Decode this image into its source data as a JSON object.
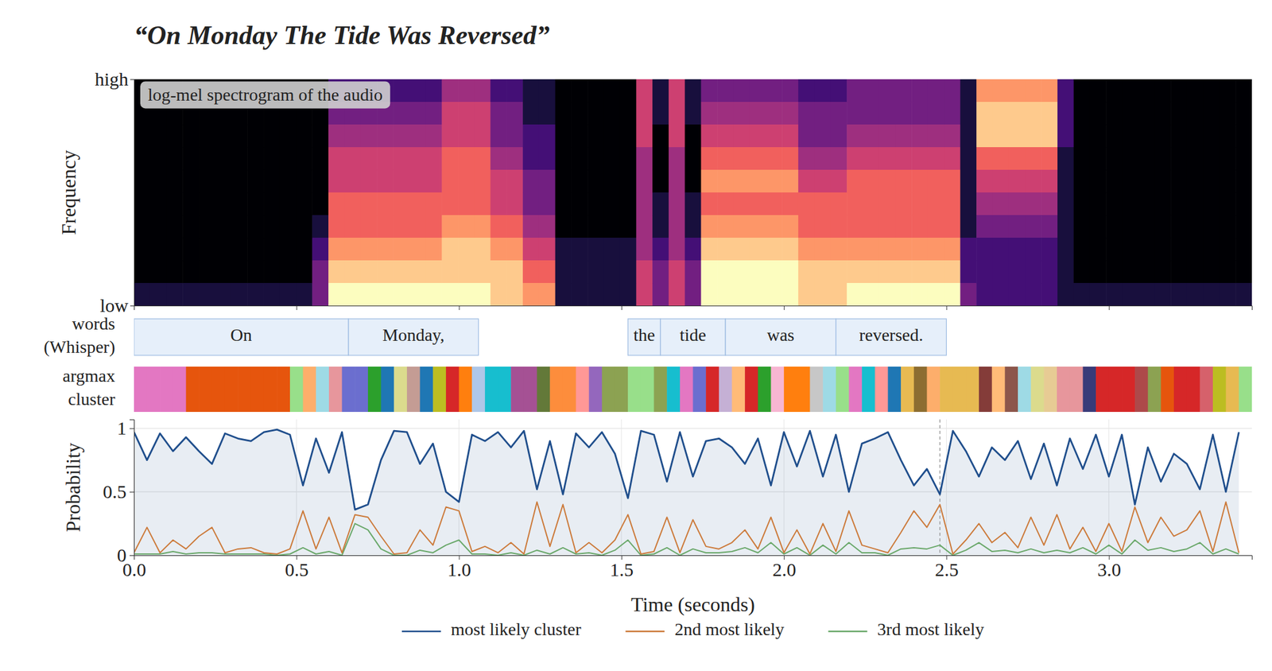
{
  "chart_data": [
    {
      "type": "heatmap",
      "title": "“On Monday The Tide Was Reversed”",
      "annotation": "log-mel spectrogram of the audio",
      "ylabel": "Frequency",
      "xlim": [
        0,
        3.44
      ],
      "xticks": [
        0,
        0.5,
        1,
        1.5,
        2,
        2.5,
        3
      ],
      "ylim": [
        0,
        1
      ],
      "yticks": [
        {
          "value": 0,
          "label": "low"
        },
        {
          "value": 1,
          "label": "high"
        }
      ],
      "tick_labels": "y",
      "cells": [
        [
          0,
          0,
          0,
          0,
          0,
          0,
          0,
          0,
          0,
          0,
          0,
          0,
          2,
          2,
          2,
          2,
          2,
          2,
          2,
          4,
          4,
          4,
          2,
          2,
          1,
          1,
          0,
          0,
          0,
          0,
          0,
          5,
          1,
          5,
          1,
          3,
          3,
          3,
          3,
          3,
          3,
          2,
          2,
          2,
          3,
          3,
          3,
          3,
          3,
          3,
          3,
          1,
          7,
          7,
          7,
          7,
          7,
          2,
          0,
          0,
          0,
          0,
          0,
          0,
          0,
          0,
          0,
          0,
          0
        ],
        [
          0,
          0,
          0,
          0,
          0,
          0,
          0,
          0,
          0,
          0,
          0,
          0,
          3,
          3,
          3,
          3,
          3,
          3,
          3,
          5,
          5,
          5,
          3,
          3,
          1,
          1,
          0,
          0,
          0,
          0,
          0,
          5,
          1,
          5,
          1,
          4,
          4,
          4,
          4,
          4,
          4,
          3,
          3,
          3,
          3,
          3,
          3,
          3,
          3,
          3,
          3,
          1,
          8,
          8,
          8,
          8,
          8,
          2,
          0,
          0,
          0,
          0,
          0,
          0,
          0,
          0,
          0,
          0,
          0
        ],
        [
          0,
          0,
          0,
          0,
          0,
          0,
          0,
          0,
          0,
          0,
          0,
          0,
          4,
          4,
          4,
          4,
          4,
          4,
          4,
          5,
          5,
          5,
          3,
          3,
          2,
          2,
          0,
          0,
          0,
          0,
          0,
          5,
          0,
          5,
          0,
          5,
          5,
          5,
          5,
          5,
          5,
          3,
          3,
          3,
          4,
          4,
          4,
          4,
          4,
          4,
          4,
          1,
          8,
          8,
          8,
          8,
          8,
          2,
          0,
          0,
          0,
          0,
          0,
          0,
          0,
          0,
          0,
          0,
          0
        ],
        [
          0,
          0,
          0,
          0,
          0,
          0,
          0,
          0,
          0,
          0,
          0,
          0,
          5,
          5,
          5,
          5,
          5,
          5,
          5,
          6,
          6,
          6,
          4,
          4,
          2,
          2,
          0,
          0,
          0,
          0,
          0,
          4,
          0,
          4,
          0,
          6,
          6,
          6,
          6,
          6,
          6,
          4,
          4,
          4,
          5,
          5,
          5,
          5,
          5,
          5,
          5,
          1,
          6,
          6,
          6,
          6,
          6,
          1,
          0,
          0,
          0,
          0,
          0,
          0,
          0,
          0,
          0,
          0,
          0
        ],
        [
          0,
          0,
          0,
          0,
          0,
          0,
          0,
          0,
          0,
          0,
          0,
          0,
          5,
          5,
          5,
          5,
          5,
          5,
          5,
          6,
          6,
          6,
          5,
          5,
          3,
          3,
          0,
          0,
          0,
          0,
          0,
          4,
          0,
          4,
          0,
          7,
          7,
          7,
          7,
          7,
          7,
          5,
          5,
          5,
          6,
          6,
          6,
          6,
          6,
          6,
          6,
          1,
          5,
          5,
          5,
          5,
          5,
          1,
          0,
          0,
          0,
          0,
          0,
          0,
          0,
          0,
          0,
          0,
          0
        ],
        [
          0,
          0,
          0,
          0,
          0,
          0,
          0,
          0,
          0,
          0,
          0,
          0,
          6,
          6,
          6,
          6,
          6,
          6,
          6,
          6,
          6,
          6,
          5,
          5,
          3,
          3,
          0,
          0,
          0,
          0,
          0,
          4,
          1,
          4,
          1,
          6,
          6,
          6,
          6,
          6,
          6,
          6,
          6,
          6,
          6,
          6,
          6,
          6,
          6,
          6,
          6,
          1,
          4,
          4,
          4,
          4,
          4,
          1,
          0,
          0,
          0,
          0,
          0,
          0,
          0,
          0,
          0,
          0,
          0
        ],
        [
          0,
          0,
          0,
          0,
          0,
          0,
          0,
          0,
          0,
          0,
          0,
          1,
          6,
          6,
          6,
          6,
          6,
          6,
          6,
          7,
          7,
          7,
          6,
          6,
          4,
          4,
          0,
          0,
          0,
          0,
          0,
          4,
          1,
          4,
          1,
          7,
          7,
          7,
          7,
          7,
          7,
          6,
          6,
          6,
          6,
          6,
          6,
          6,
          6,
          6,
          6,
          1,
          3,
          3,
          3,
          3,
          3,
          1,
          0,
          0,
          0,
          0,
          0,
          0,
          0,
          0,
          0,
          0,
          0
        ],
        [
          0,
          0,
          0,
          0,
          0,
          0,
          0,
          0,
          0,
          0,
          0,
          2,
          7,
          7,
          7,
          7,
          7,
          7,
          7,
          8,
          8,
          8,
          7,
          7,
          5,
          5,
          1,
          1,
          1,
          1,
          1,
          4,
          2,
          4,
          2,
          8,
          8,
          8,
          8,
          8,
          8,
          7,
          7,
          7,
          7,
          7,
          7,
          7,
          7,
          7,
          7,
          2,
          2,
          2,
          2,
          2,
          2,
          1,
          0,
          0,
          0,
          0,
          0,
          0,
          0,
          0,
          0,
          0,
          0
        ],
        [
          0,
          0,
          0,
          0,
          0,
          0,
          0,
          0,
          0,
          0,
          0,
          3,
          8,
          8,
          8,
          8,
          8,
          8,
          8,
          8,
          8,
          8,
          8,
          8,
          6,
          6,
          1,
          1,
          1,
          1,
          1,
          5,
          3,
          5,
          3,
          9,
          9,
          9,
          9,
          9,
          9,
          8,
          8,
          8,
          8,
          8,
          8,
          8,
          8,
          8,
          8,
          2,
          2,
          2,
          2,
          2,
          2,
          1,
          0,
          0,
          0,
          0,
          0,
          0,
          0,
          0,
          0,
          0,
          0
        ],
        [
          1,
          1,
          1,
          1,
          1,
          1,
          1,
          1,
          1,
          1,
          1,
          3,
          9,
          9,
          9,
          9,
          9,
          9,
          9,
          9,
          9,
          9,
          8,
          8,
          7,
          7,
          1,
          1,
          1,
          1,
          1,
          5,
          3,
          5,
          3,
          9,
          9,
          9,
          9,
          9,
          9,
          8,
          8,
          8,
          9,
          9,
          9,
          9,
          9,
          9,
          9,
          3,
          2,
          2,
          2,
          2,
          2,
          1,
          1,
          1,
          1,
          1,
          1,
          1,
          1,
          1,
          1,
          1,
          1
        ]
      ]
    },
    {
      "type": "timeline",
      "ylabel": "words\n(Whisper)",
      "xlim": [
        0,
        3.44
      ],
      "words": [
        {
          "text": "On",
          "start": 0,
          "end": 0.66
        },
        {
          "text": "Monday,",
          "start": 0.66,
          "end": 1.06
        },
        {
          "text": "the",
          "start": 1.52,
          "end": 1.62
        },
        {
          "text": "tide",
          "start": 1.62,
          "end": 1.82
        },
        {
          "text": "was",
          "start": 1.82,
          "end": 2.16
        },
        {
          "text": "reversed.",
          "start": 2.16,
          "end": 2.5
        }
      ]
    },
    {
      "type": "strip",
      "ylabel": "argmax\ncluster",
      "xlim": [
        0,
        3.44
      ],
      "colors": [
        "#e377c2",
        "#e377c2",
        "#e377c2",
        "#e377c2",
        "#e6550d",
        "#e6550d",
        "#e6550d",
        "#e6550d",
        "#e6550d",
        "#e6550d",
        "#e6550d",
        "#e6550d",
        "#98df8a",
        "#fdae6b",
        "#9edae5",
        "#e7969c",
        "#6b6ecf",
        "#6b6ecf",
        "#2ca02c",
        "#1f77b4",
        "#dbdb8d",
        "#c49c94",
        "#1f77b4",
        "#bcbd22",
        "#d62728",
        "#ff7f0e",
        "#aec7e8",
        "#17becf",
        "#17becf",
        "#a55194",
        "#a55194",
        "#637939",
        "#fd8d3c",
        "#fd8d3c",
        "#ff9896",
        "#9467bd",
        "#8ca252",
        "#8ca252",
        "#98df8a",
        "#98df8a",
        "#8ca252",
        "#17becf",
        "#e377c2",
        "#6b6ecf",
        "#d62728",
        "#c5b0d5",
        "#ffbb78",
        "#d62728",
        "#2ca02c",
        "#f7b6d2",
        "#ff7f0e",
        "#ff7f0e",
        "#c7c7c7",
        "#9edae5",
        "#98df8a",
        "#e377c2",
        "#17becf",
        "#ff9896",
        "#1f77b4",
        "#e7ba52",
        "#8c6d31",
        "#fdae6b",
        "#e7ba52",
        "#e7ba52",
        "#e7ba52",
        "#843c39",
        "#ffbb78",
        "#8c564b",
        "#9edae5",
        "#dbdb8d",
        "#e7cb94",
        "#e7969c",
        "#e7969c",
        "#393b79",
        "#d62728",
        "#d62728",
        "#d62728",
        "#ad494a",
        "#8ca252",
        "#e6550d",
        "#d62728",
        "#d62728",
        "#d6616b",
        "#bcbd22",
        "#e7ba52",
        "#98df8a"
      ]
    },
    {
      "type": "line",
      "xlabel": "Time (seconds)",
      "ylabel": "Probability",
      "xlim": [
        0,
        3.44
      ],
      "xticks": [
        {
          "value": 0,
          "label": "0.0"
        },
        0.5,
        {
          "value": 1,
          "label": "1.0"
        },
        1.5,
        {
          "value": 2,
          "label": "2.0"
        },
        2.5,
        {
          "value": 3,
          "label": "3.0"
        }
      ],
      "ylim": [
        0,
        1.07
      ],
      "yticks": [
        0,
        0.5,
        1
      ],
      "grid": true,
      "legend": "bottom",
      "vline": 2.48,
      "x": [
        0,
        0.04,
        0.08,
        0.12,
        0.16,
        0.2,
        0.24,
        0.28,
        0.32,
        0.36,
        0.4,
        0.44,
        0.48,
        0.52,
        0.56,
        0.6,
        0.64,
        0.68,
        0.72,
        0.76,
        0.8,
        0.84,
        0.88,
        0.92,
        0.96,
        1,
        1.04,
        1.08,
        1.12,
        1.16,
        1.2,
        1.24,
        1.28,
        1.32,
        1.36,
        1.4,
        1.44,
        1.48,
        1.52,
        1.56,
        1.6,
        1.64,
        1.68,
        1.72,
        1.76,
        1.8,
        1.84,
        1.88,
        1.92,
        1.96,
        2,
        2.04,
        2.08,
        2.12,
        2.16,
        2.2,
        2.24,
        2.28,
        2.32,
        2.36,
        2.4,
        2.44,
        2.48,
        2.52,
        2.56,
        2.6,
        2.64,
        2.68,
        2.72,
        2.76,
        2.8,
        2.84,
        2.88,
        2.92,
        2.96,
        3,
        3.04,
        3.08,
        3.12,
        3.16,
        3.2,
        3.24,
        3.28,
        3.32,
        3.36,
        3.4
      ],
      "series": [
        {
          "name": "most likely cluster",
          "color": "#1f4e8c",
          "values": [
            0.97,
            0.75,
            0.96,
            0.82,
            0.93,
            0.82,
            0.72,
            0.96,
            0.92,
            0.9,
            0.97,
            0.99,
            0.95,
            0.55,
            0.92,
            0.65,
            0.97,
            0.36,
            0.4,
            0.75,
            0.98,
            0.97,
            0.72,
            0.88,
            0.5,
            0.42,
            0.95,
            0.9,
            0.97,
            0.85,
            0.98,
            0.52,
            0.9,
            0.48,
            0.96,
            0.85,
            0.97,
            0.8,
            0.45,
            0.98,
            0.95,
            0.58,
            0.97,
            0.62,
            0.9,
            0.92,
            0.85,
            0.72,
            0.92,
            0.55,
            0.97,
            0.7,
            0.98,
            0.62,
            0.95,
            0.5,
            0.88,
            0.92,
            0.97,
            0.75,
            0.55,
            0.68,
            0.48,
            0.98,
            0.82,
            0.62,
            0.85,
            0.75,
            0.9,
            0.6,
            0.88,
            0.55,
            0.92,
            0.68,
            0.95,
            0.62,
            0.95,
            0.4,
            0.85,
            0.58,
            0.8,
            0.72,
            0.52,
            0.95,
            0.5,
            0.97
          ]
        },
        {
          "name": "2nd most likely",
          "color": "#cc7a3a",
          "values": [
            0.02,
            0.22,
            0.02,
            0.12,
            0.05,
            0.15,
            0.22,
            0.02,
            0.05,
            0.06,
            0.02,
            0.01,
            0.05,
            0.35,
            0.05,
            0.3,
            0.02,
            0.32,
            0.3,
            0.15,
            0.01,
            0.02,
            0.2,
            0.08,
            0.38,
            0.35,
            0.03,
            0.07,
            0.02,
            0.1,
            0.01,
            0.42,
            0.07,
            0.4,
            0.02,
            0.1,
            0.02,
            0.12,
            0.32,
            0.01,
            0.03,
            0.3,
            0.02,
            0.28,
            0.07,
            0.05,
            0.1,
            0.2,
            0.05,
            0.3,
            0.02,
            0.2,
            0.01,
            0.25,
            0.03,
            0.35,
            0.08,
            0.05,
            0.02,
            0.18,
            0.35,
            0.22,
            0.4,
            0.01,
            0.12,
            0.25,
            0.1,
            0.18,
            0.06,
            0.3,
            0.08,
            0.32,
            0.05,
            0.22,
            0.03,
            0.25,
            0.03,
            0.38,
            0.1,
            0.3,
            0.15,
            0.2,
            0.35,
            0.03,
            0.42,
            0.02
          ]
        },
        {
          "name": "3rd most likely",
          "color": "#6aa86a",
          "values": [
            0.01,
            0.01,
            0.01,
            0.03,
            0.01,
            0.02,
            0.02,
            0.01,
            0.01,
            0.01,
            0.01,
            0.0,
            0.01,
            0.06,
            0.01,
            0.03,
            0.0,
            0.25,
            0.2,
            0.05,
            0.0,
            0.0,
            0.04,
            0.02,
            0.08,
            0.12,
            0.01,
            0.01,
            0.0,
            0.02,
            0.0,
            0.04,
            0.01,
            0.06,
            0.01,
            0.02,
            0.0,
            0.04,
            0.12,
            0.0,
            0.01,
            0.06,
            0.0,
            0.05,
            0.02,
            0.02,
            0.03,
            0.06,
            0.02,
            0.1,
            0.01,
            0.06,
            0.0,
            0.08,
            0.01,
            0.1,
            0.02,
            0.02,
            0.0,
            0.05,
            0.06,
            0.05,
            0.08,
            0.0,
            0.04,
            0.1,
            0.03,
            0.04,
            0.02,
            0.05,
            0.02,
            0.04,
            0.02,
            0.06,
            0.01,
            0.08,
            0.01,
            0.12,
            0.04,
            0.06,
            0.03,
            0.05,
            0.1,
            0.01,
            0.05,
            0.01
          ]
        }
      ]
    }
  ]
}
